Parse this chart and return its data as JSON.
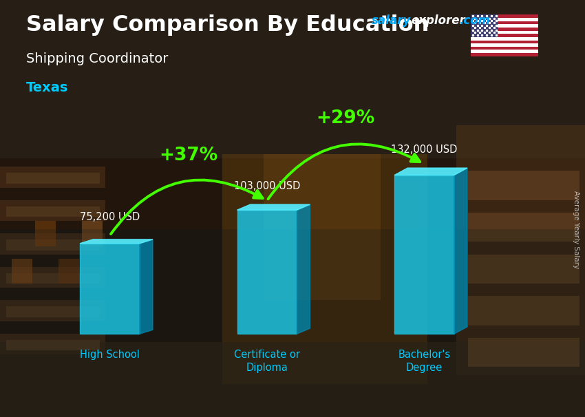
{
  "title_main": "Salary Comparison By Education",
  "title_sub": "Shipping Coordinator",
  "location": "Texas",
  "watermark_salary": "salary",
  "watermark_explorer": "explorer",
  "watermark_com": ".com",
  "ylabel_rotated": "Average Yearly Salary",
  "categories": [
    "High School",
    "Certificate or\nDiploma",
    "Bachelor's\nDegree"
  ],
  "values": [
    75200,
    103000,
    132000
  ],
  "value_labels": [
    "75,200 USD",
    "103,000 USD",
    "132,000 USD"
  ],
  "pct_labels": [
    "+37%",
    "+29%"
  ],
  "bar_color_front": "#1ac8e8",
  "bar_color_top": "#55eeff",
  "bar_color_side": "#0088b0",
  "title_color": "#ffffff",
  "subtitle_color": "#ffffff",
  "location_color": "#00ccff",
  "value_label_color": "#ffffff",
  "pct_color": "#88ff00",
  "arrow_color": "#44ff00",
  "category_color": "#00ccff",
  "watermark_salary_color": "#00aaff",
  "watermark_other_color": "#ffffff",
  "bg_warehouse_color": "#5a4020",
  "bg_overlay_color": "#1a1008",
  "max_val": 160000,
  "fig_width": 8.5,
  "fig_height": 6.06
}
